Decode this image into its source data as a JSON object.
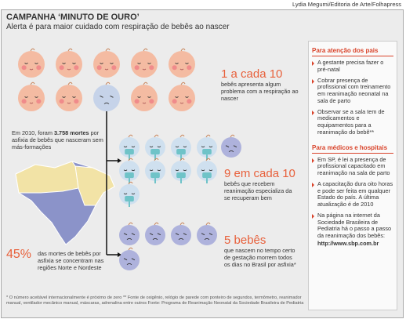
{
  "credit": "Lydia Megumi/Editoria de Arte/Folhapress",
  "header": {
    "title": "CAMPANHA ‘MINUTO DE OURO’",
    "subtitle": "Alerta é para maior cuidado com respiração de bebês ao nascer"
  },
  "stat_one": {
    "headline": "1 a cada 10",
    "text": "bebês apresenta algum problema com a respiração ao nascer"
  },
  "stat_nine": {
    "headline": "9 em cada 10",
    "text": "bebês que recebem reanimação especializa da se recuperam bem"
  },
  "stat_five": {
    "headline": "5 bebês",
    "text": "que nascem no tempo certo de gestação morrem todos os dias no Brasil por asfixia*"
  },
  "deaths": {
    "prefix": "Em 2010, foram",
    "bold": "3.758 mortes",
    "suffix": "por asfixia de bebês que nasceram sem más-formações"
  },
  "regions": {
    "headline": "45%",
    "text": "das mortes de bebês por asfixia se concentram nas regiões Norte e Nordeste"
  },
  "sidebar": {
    "parents": {
      "title": "Para atenção dos pais",
      "items": [
        "A gestante precisa fazer o pré-natal",
        "Cobrar presença de profissional com treinamento em reanimação neonatal na sala de parto",
        "Observar se a sala tem de medicamentos e equipamentos para a reanimação do bebê**"
      ]
    },
    "doctors": {
      "title": "Para médicos e hospitais",
      "items": [
        "Em SP, é lei a presença de profissional capacitado em reanimação na sala de parto",
        "A capacitação dura oito horas e pode ser feita em qualquer Estado do país. A última atualização é de 2010",
        "Na página na internet da Sociedade Brasileira de Pediatria há o passo a passo da reanimação dos bebês:"
      ],
      "url": "http://www.sbp.com.br"
    }
  },
  "footnotes": [
    "* O número aceitável internacionalmente é próximo de zero",
    "** Fonte de oxigênio, relógio de parede com ponteiro de segundos, termômetro, reanimador manual, ventilador mecânico manual, máscaras, adrenalina entre outros",
    "Fonte: Programa de Reanimação Neonatal da Sociedade Brasileira de Pediatria"
  ]
}
